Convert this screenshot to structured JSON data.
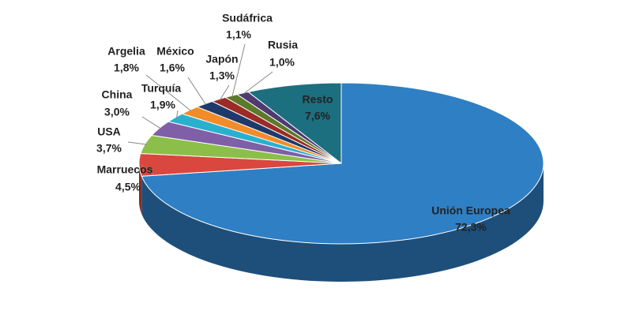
{
  "chart_data": {
    "type": "pie",
    "categories": [
      "Unión Europea",
      "Marruecos",
      "USA",
      "China",
      "Turquía",
      "Argelia",
      "México",
      "Japón",
      "Sudáfrica",
      "Rusia",
      "Resto"
    ],
    "values": [
      72.3,
      4.5,
      3.7,
      3.0,
      1.9,
      1.8,
      1.6,
      1.3,
      1.1,
      1.0,
      7.6
    ],
    "value_labels": [
      "72,3%",
      "4,5%",
      "3,7%",
      "3,0%",
      "1,9%",
      "1,8%",
      "1,6%",
      "1,3%",
      "1,1%",
      "1,0%",
      "7,6%"
    ],
    "colors": [
      "#2e7fc4",
      "#d9473f",
      "#8cbf4a",
      "#7f5fa8",
      "#2ab0cf",
      "#f28c28",
      "#1f3a6a",
      "#9c2a26",
      "#5c7a2a",
      "#4f3a70",
      "#1c6f7f"
    ]
  }
}
